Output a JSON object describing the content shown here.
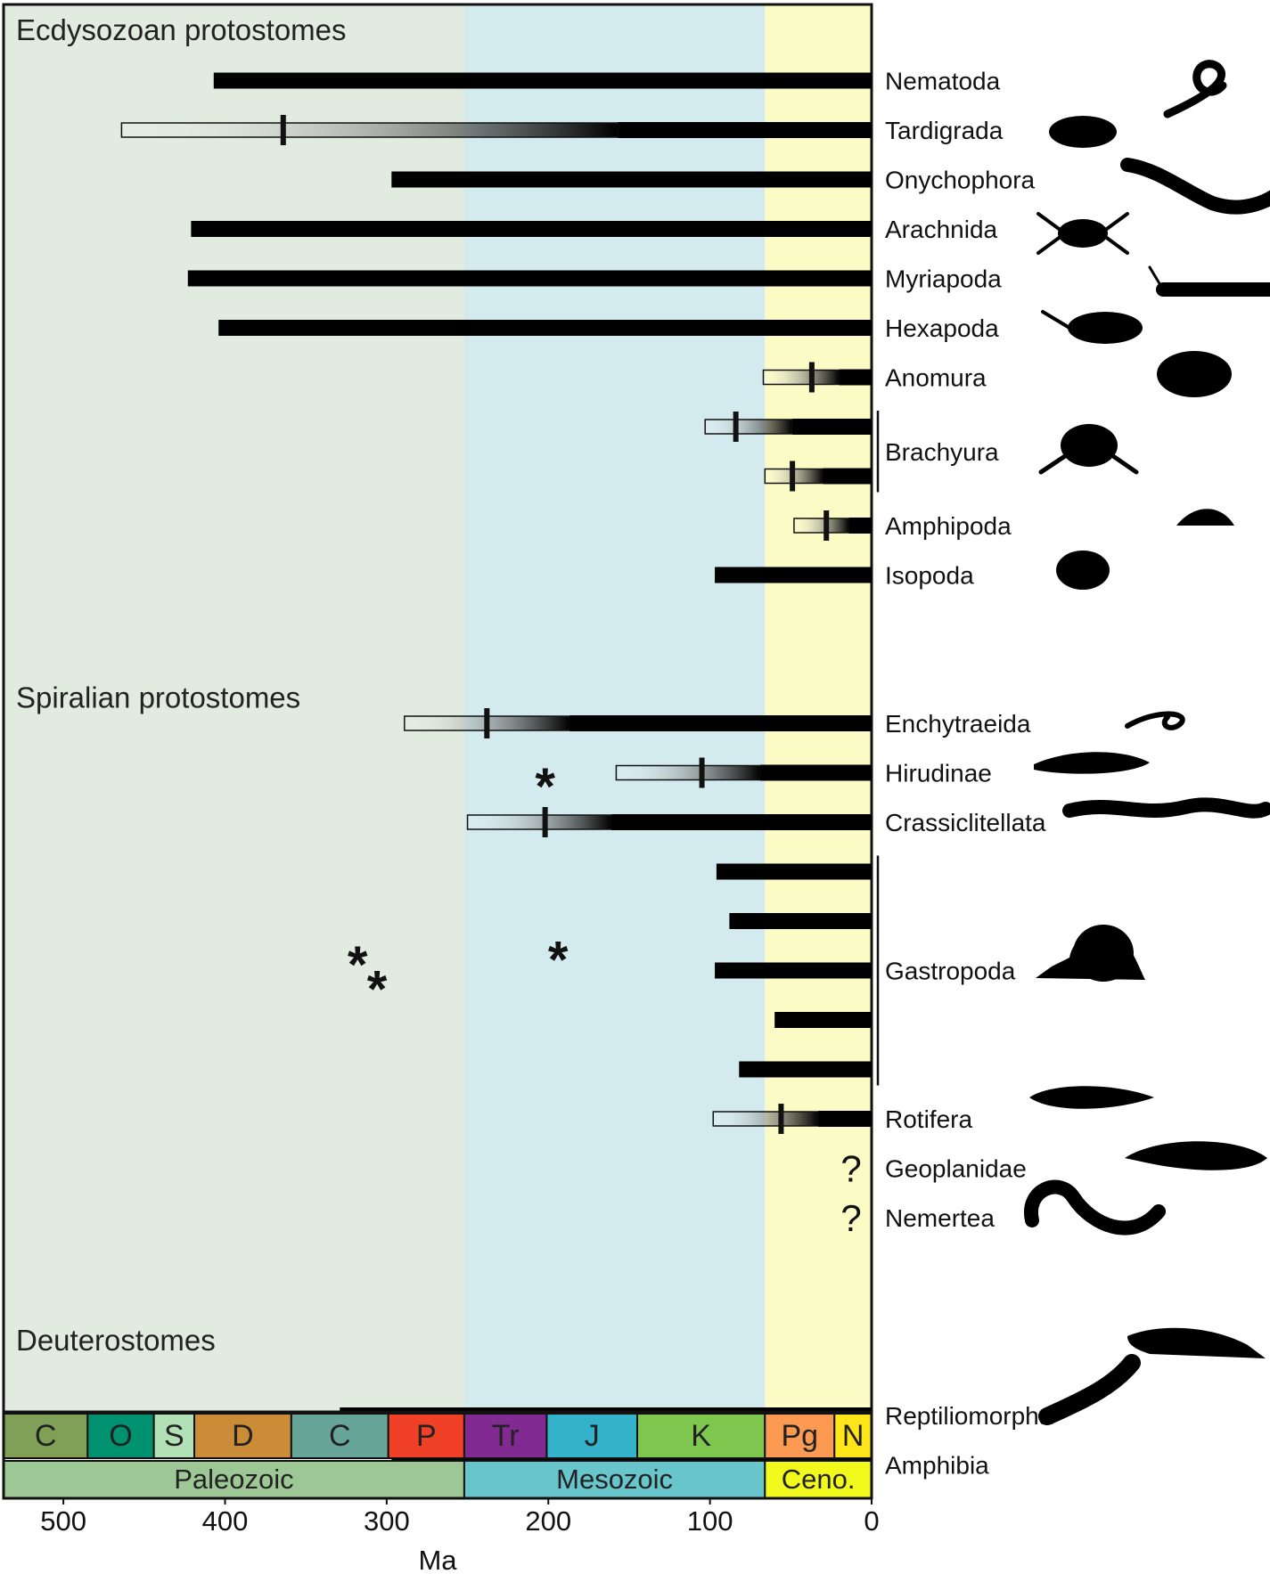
{
  "chart_data": {
    "type": "bar",
    "orientation": "horizontal",
    "x_unit": "Ma",
    "xlabel": "Ma",
    "xlim": [
      537,
      0
    ],
    "x_ticks": [
      500,
      400,
      300,
      200,
      100,
      0
    ],
    "eras": [
      {
        "name": "Paleozoic",
        "start": 541,
        "end": 252,
        "color": "#9dc895",
        "bg": "#e1ebdf"
      },
      {
        "name": "Mesozoic",
        "start": 252,
        "end": 66,
        "color": "#67c5cb",
        "bg": "#d3ebef"
      },
      {
        "name": "Ceno.",
        "start": 66,
        "end": 0,
        "color": "#f2f91d",
        "bg": "#fbfbc5"
      }
    ],
    "periods": [
      {
        "name": "C",
        "start": 541,
        "end": 485,
        "color": "#7fa056"
      },
      {
        "name": "O",
        "start": 485,
        "end": 444,
        "color": "#009270"
      },
      {
        "name": "S",
        "start": 444,
        "end": 419,
        "color": "#b3e1b6"
      },
      {
        "name": "D",
        "start": 419,
        "end": 359,
        "color": "#cb8c37"
      },
      {
        "name": "C",
        "start": 359,
        "end": 299,
        "color": "#67a599"
      },
      {
        "name": "P",
        "start": 299,
        "end": 252,
        "color": "#f04028"
      },
      {
        "name": "Tr",
        "start": 252,
        "end": 201,
        "color": "#812b92"
      },
      {
        "name": "J",
        "start": 201,
        "end": 145,
        "color": "#34b2c9"
      },
      {
        "name": "K",
        "start": 145,
        "end": 66,
        "color": "#7fc64e"
      },
      {
        "name": "Pg",
        "start": 66,
        "end": 23,
        "color": "#fd9a52"
      },
      {
        "name": "N",
        "start": 23,
        "end": 0,
        "color": "#ffe619"
      }
    ],
    "sections": [
      {
        "label": "Ecdysozoan protostomes",
        "row": 0
      },
      {
        "label": "Spiralian protostomes",
        "row": 13.5
      },
      {
        "label": "Deuterostomes",
        "row": 26.5
      }
    ],
    "bars": [
      {
        "label": "Nematoda",
        "row": 1,
        "solid_start": 407
      },
      {
        "label": "Tardigrada",
        "row": 2,
        "solid_start": 157,
        "gradient_start": 464,
        "median": 364
      },
      {
        "label": "Onychophora",
        "row": 3,
        "solid_start": 297
      },
      {
        "label": "Arachnida",
        "row": 4,
        "solid_start": 421
      },
      {
        "label": "Myriapoda",
        "row": 5,
        "solid_start": 423
      },
      {
        "label": "Hexapoda",
        "row": 6,
        "solid_start": 404
      },
      {
        "label": "Anomura",
        "row": 7,
        "solid_start": 20,
        "gradient_start": 67,
        "median": 37
      },
      {
        "label": "Brachyura",
        "row": 8.5,
        "label_only": true
      },
      {
        "label": "",
        "row": 8,
        "solid_start": 49,
        "gradient_start": 103,
        "median": 84
      },
      {
        "label": "",
        "row": 9,
        "solid_start": 30,
        "gradient_start": 66,
        "median": 49
      },
      {
        "label": "Amphipoda",
        "row": 10,
        "solid_start": 14,
        "gradient_start": 48,
        "median": 28
      },
      {
        "label": "Isopoda",
        "row": 11,
        "solid_start": 97
      },
      {
        "label": "Enchytraeida",
        "row": 14,
        "solid_start": 187,
        "gradient_start": 289,
        "median": 238
      },
      {
        "label": "Hirudinae",
        "row": 15,
        "solid_start": 69,
        "gradient_start": 158,
        "median": 105
      },
      {
        "label": "Crassiclitellata",
        "row": 16,
        "solid_start": 161,
        "gradient_start": 250,
        "median": 202
      },
      {
        "label": "",
        "row": 17,
        "solid_start": 96
      },
      {
        "label": "",
        "row": 18,
        "solid_start": 88
      },
      {
        "label": "Gastropoda",
        "row": 19,
        "solid_start": 97
      },
      {
        "label": "",
        "row": 20,
        "solid_start": 60
      },
      {
        "label": "",
        "row": 21,
        "solid_start": 82
      },
      {
        "label": "Rotifera",
        "row": 22,
        "solid_start": 33,
        "gradient_start": 98,
        "median": 56
      },
      {
        "label": "Geoplanidae",
        "row": 23,
        "question": true
      },
      {
        "label": "Nemertea",
        "row": 24,
        "question": true
      },
      {
        "label": "Reptiliomorpha",
        "row": 28,
        "solid_start": 329
      },
      {
        "label": "Amphibia",
        "row": 29,
        "solid_start": 297
      }
    ],
    "annotations": [
      {
        "text": "*",
        "x": 202,
        "row": 15.1
      },
      {
        "text": "*",
        "x": 194,
        "row": 18.6
      },
      {
        "text": "*",
        "x": 318,
        "row": 18.7
      },
      {
        "text": "*",
        "x": 306,
        "row": 19.2
      }
    ],
    "groups": [
      {
        "label": "Brachyura",
        "rows": [
          8,
          9
        ]
      },
      {
        "label": "Gastropoda",
        "rows": [
          17,
          21
        ]
      }
    ],
    "silhouettes": [
      "worm-icon",
      "tardigrade-icon",
      "velvet-worm-icon",
      "spider-icon",
      "centipede-icon",
      "beetle-icon",
      "crab-icon",
      "amphipod-icon",
      "woodlouse-icon",
      "snail-icon",
      "leech-icon",
      "earthworm-icon",
      "rotifer-icon",
      "flatworm-icon",
      "ribbon-worm-icon",
      "reptile-icon",
      "salamander-icon"
    ]
  }
}
